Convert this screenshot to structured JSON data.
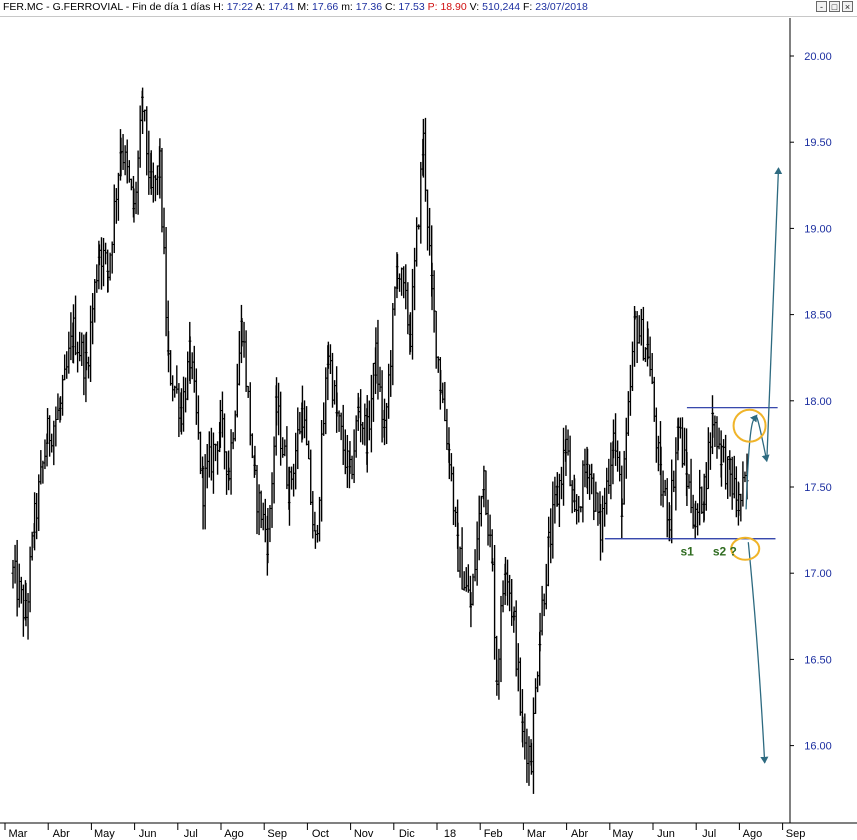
{
  "header": {
    "symbol": "FER.MC",
    "name": "G.FERROVIAL",
    "period": "Fin de día 1 días",
    "h_label": "H:",
    "h_value": "17:22",
    "a_label": "A:",
    "a_value": "17.41",
    "m_label": "M:",
    "m_value": "17.66",
    "min_label": "m:",
    "min_value": "17.36",
    "c_label": "C:",
    "c_value": "17.53",
    "p_label": "P:",
    "p_value": "18.90",
    "v_label": "V:",
    "v_value": "510,244",
    "f_label": "F:",
    "f_value": "23/07/2018"
  },
  "window_buttons": [
    "-",
    "□",
    "×"
  ],
  "colors": {
    "price_axis": "#1c2fa0",
    "bars": "#000000",
    "lines": "#1c2fa0",
    "arrows": "#2d6a80",
    "circles": "#f0b429",
    "support_labels": "#2e6b1f"
  },
  "chart_data": {
    "type": "line",
    "title": "",
    "xlabel": "",
    "ylabel": "",
    "ylim": [
      15.7,
      20.2
    ],
    "yticks": [
      "16.00",
      "16.50",
      "17.00",
      "17.50",
      "18.00",
      "18.50",
      "19.00",
      "19.50",
      "20.00"
    ],
    "ytick_values": [
      16.0,
      16.5,
      17.0,
      17.5,
      18.0,
      18.5,
      19.0,
      19.5,
      20.0
    ],
    "x_range": [
      0,
      17.8
    ],
    "x_month_labels": [
      "Mar",
      "Abr",
      "May",
      "Jun",
      "Jul",
      "Ago",
      "Sep",
      "Oct",
      "Nov",
      "Dic",
      "18",
      "Feb",
      "Mar",
      "Abr",
      "May",
      "Jun",
      "Jul",
      "Ago",
      "Sep"
    ],
    "x_month_positions": [
      0,
      1,
      2,
      3,
      4,
      5,
      6,
      7,
      8,
      9,
      10,
      11,
      12,
      13,
      14,
      15,
      16,
      17,
      18
    ],
    "series": [
      {
        "x": [
          0.0,
          0.3,
          0.5,
          0.8,
          1.1,
          1.4,
          1.7,
          2.0,
          2.2,
          2.5,
          2.8,
          3.0,
          3.2,
          3.4,
          3.6,
          3.9,
          4.1,
          4.4,
          4.8,
          5.0,
          5.3,
          5.6,
          5.9,
          6.1,
          6.4,
          6.7,
          7.0,
          7.3,
          7.5,
          7.8,
          8.0,
          8.2,
          8.4,
          8.6,
          8.9,
          9.2,
          9.5,
          9.7,
          9.9,
          10.1,
          10.3,
          10.6,
          10.9,
          11.1,
          11.2,
          11.4,
          11.6,
          11.8,
          12.0,
          12.2,
          12.4,
          12.6,
          12.8,
          13.0,
          13.3,
          13.6,
          13.9,
          14.1,
          14.4,
          14.7,
          15.0,
          15.2,
          15.4,
          15.6,
          15.8,
          16.0,
          16.2,
          16.4,
          16.6,
          16.8,
          17.0
        ],
        "y": [
          17.0,
          16.75,
          17.3,
          17.8,
          17.95,
          18.4,
          18.2,
          18.9,
          18.75,
          19.5,
          19.1,
          19.7,
          19.2,
          19.35,
          18.2,
          17.95,
          18.25,
          17.5,
          17.85,
          17.6,
          18.45,
          17.5,
          17.2,
          17.95,
          17.5,
          17.95,
          17.15,
          18.3,
          17.9,
          17.55,
          17.95,
          17.8,
          18.25,
          17.8,
          18.8,
          18.4,
          19.5,
          18.6,
          18.1,
          17.7,
          17.1,
          16.8,
          17.6,
          17.0,
          16.4,
          17.1,
          16.7,
          16.05,
          15.95,
          16.7,
          17.15,
          17.45,
          17.75,
          17.3,
          17.65,
          17.25,
          17.8,
          17.4,
          18.45,
          18.3,
          17.5,
          17.35,
          17.85,
          17.55,
          17.3,
          17.5,
          17.9,
          17.7,
          17.55,
          17.4,
          17.53
        ]
      }
    ],
    "annotations": {
      "resistance_level": 17.96,
      "support_level": 17.2,
      "labels": [
        "s1",
        "s2 ?"
      ]
    },
    "grid": false,
    "legend": "none"
  }
}
